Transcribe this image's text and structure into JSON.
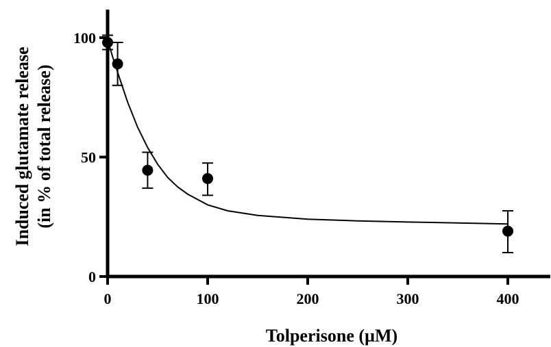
{
  "chart_data": {
    "type": "scatter",
    "title": "",
    "xlabel": "Tolperisone (µM)",
    "ylabel_lines": [
      "Induced glutamate release",
      "(in % of total release)"
    ],
    "xlim": [
      0,
      440
    ],
    "ylim": [
      0,
      105
    ],
    "x_ticks": [
      0,
      100,
      200,
      300,
      400
    ],
    "y_ticks": [
      0,
      50,
      100
    ],
    "x_tick_labels": [
      "0",
      "100",
      "200",
      "300",
      "400"
    ],
    "y_tick_labels": [
      "0",
      "50",
      "100"
    ],
    "grid": false,
    "legend": "none",
    "series": [
      {
        "x": [
          0,
          10,
          40,
          100,
          400
        ],
        "y": [
          98,
          89,
          44.5,
          41,
          19
        ],
        "error_low": [
          95,
          80,
          37,
          34,
          10
        ],
        "error_high": [
          101,
          98,
          52,
          47.5,
          27.5
        ]
      }
    ],
    "fit_curve": {
      "x": [
        0,
        5,
        10,
        20,
        30,
        40,
        50,
        60,
        70,
        80,
        100,
        120,
        150,
        200,
        250,
        300,
        350,
        400
      ],
      "y": [
        99,
        92,
        85.5,
        73,
        62.5,
        54,
        47,
        41.5,
        37.5,
        34.5,
        30,
        27.5,
        25.6,
        24,
        23.3,
        22.8,
        22.4,
        22
      ]
    }
  }
}
